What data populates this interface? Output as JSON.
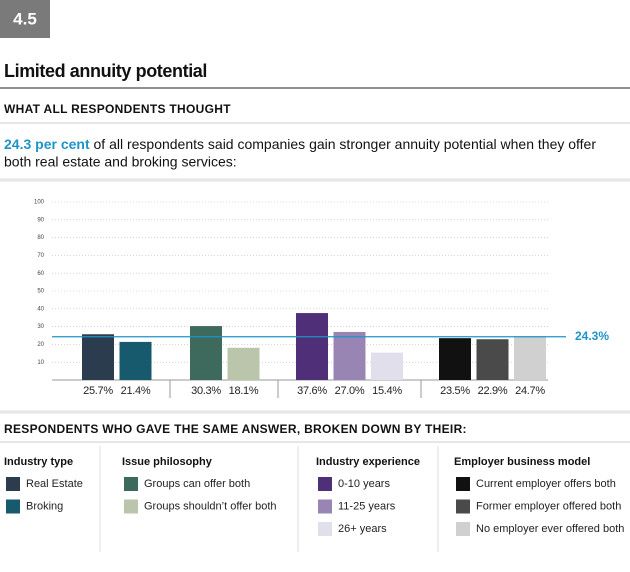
{
  "badge": "4.5",
  "title": "Limited annuity potential",
  "section_heading": "WHAT ALL RESPONDENTS THOUGHT",
  "intro": {
    "highlight": "24.3 per cent",
    "line1": "of all respondents said companies gain stronger annuity potential when they offer",
    "line2": "both real estate and broking services:"
  },
  "chart_data": {
    "type": "bar",
    "ylim": [
      0,
      100
    ],
    "yticks": [
      10,
      20,
      30,
      40,
      50,
      60,
      70,
      80,
      90,
      100
    ],
    "grid": true,
    "reference": {
      "value": 24.3,
      "label": "24.3%",
      "color": "#1e95c9"
    },
    "breakdown_heading": "RESPONDENTS WHO GAVE THE SAME ANSWER, BROKEN DOWN BY THEIR:",
    "groups": [
      {
        "name": "Industry type",
        "series": [
          {
            "name": "Real Estate",
            "color": "#2b3c4e",
            "value": 25.7,
            "value_label": "25.7%"
          },
          {
            "name": "Broking",
            "color": "#175a6d",
            "value": 21.4,
            "value_label": "21.4%"
          }
        ]
      },
      {
        "name": "Issue philosophy",
        "series": [
          {
            "name": "Groups can offer both",
            "color": "#3e6a5e",
            "value": 30.3,
            "value_label": "30.3%"
          },
          {
            "name": "Groups shouldn’t offer both",
            "color": "#bac5ab",
            "value": 18.1,
            "value_label": "18.1%"
          }
        ]
      },
      {
        "name": "Industry experience",
        "series": [
          {
            "name": "0-10 years",
            "color": "#4e2f78",
            "value": 37.6,
            "value_label": "37.6%"
          },
          {
            "name": "11-25 years",
            "color": "#9985b4",
            "value": 27.0,
            "value_label": "27.0%"
          },
          {
            "name": "26+ years",
            "color": "#e2dfed",
            "value": 15.4,
            "value_label": "15.4%"
          }
        ]
      },
      {
        "name": "Employer business model",
        "series": [
          {
            "name": "Current employer offers both",
            "color": "#111111",
            "value": 23.5,
            "value_label": "23.5%"
          },
          {
            "name": "Former employer offered both",
            "color": "#4a4a4a",
            "value": 22.9,
            "value_label": "22.9%"
          },
          {
            "name": "No employer ever offered both",
            "color": "#d0d0d0",
            "value": 24.7,
            "value_label": "24.7%"
          }
        ]
      }
    ]
  }
}
